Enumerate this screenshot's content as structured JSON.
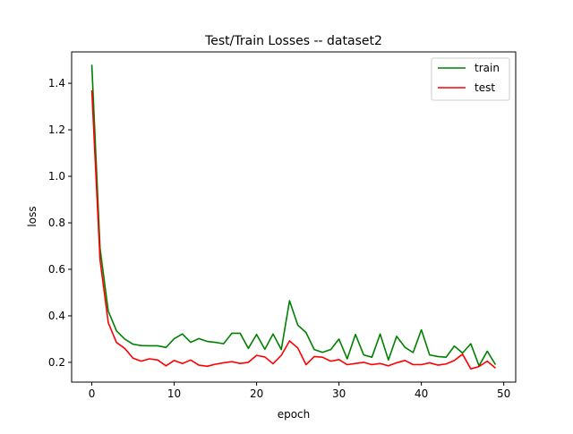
{
  "chart_data": {
    "type": "line",
    "title": "Test/Train Losses -- dataset2",
    "xlabel": "epoch",
    "ylabel": "loss",
    "xlim": [
      -2.45,
      51.45
    ],
    "ylim": [
      0.115,
      1.535
    ],
    "xticks": [
      0,
      10,
      20,
      30,
      40,
      50
    ],
    "yticks": [
      0.2,
      0.4,
      0.6,
      0.8,
      1.0,
      1.2,
      1.4
    ],
    "ytick_labels": [
      "0.2",
      "0.4",
      "0.6",
      "0.8",
      "1.0",
      "1.2",
      "1.4"
    ],
    "grid": false,
    "legend_position": "top-right",
    "x": [
      0,
      1,
      2,
      3,
      4,
      5,
      6,
      7,
      8,
      9,
      10,
      11,
      12,
      13,
      14,
      15,
      16,
      17,
      18,
      19,
      20,
      21,
      22,
      23,
      24,
      25,
      26,
      27,
      28,
      29,
      30,
      31,
      32,
      33,
      34,
      35,
      36,
      37,
      38,
      39,
      40,
      41,
      42,
      43,
      44,
      45,
      46,
      47,
      48,
      49
    ],
    "series": [
      {
        "name": "train",
        "color": "#008000",
        "values": [
          1.48,
          0.69,
          0.42,
          0.335,
          0.3,
          0.278,
          0.272,
          0.271,
          0.271,
          0.264,
          0.302,
          0.322,
          0.286,
          0.302,
          0.29,
          0.286,
          0.28,
          0.325,
          0.325,
          0.26,
          0.32,
          0.256,
          0.322,
          0.255,
          0.465,
          0.36,
          0.328,
          0.255,
          0.243,
          0.255,
          0.3,
          0.215,
          0.32,
          0.232,
          0.222,
          0.322,
          0.21,
          0.312,
          0.265,
          0.242,
          0.34,
          0.232,
          0.225,
          0.222,
          0.27,
          0.24,
          0.28,
          0.185,
          0.248,
          0.19
        ]
      },
      {
        "name": "test",
        "color": "#ff0000",
        "values": [
          1.37,
          0.64,
          0.37,
          0.285,
          0.26,
          0.218,
          0.205,
          0.215,
          0.21,
          0.185,
          0.208,
          0.195,
          0.21,
          0.188,
          0.183,
          0.192,
          0.198,
          0.203,
          0.195,
          0.2,
          0.23,
          0.223,
          0.194,
          0.23,
          0.292,
          0.262,
          0.19,
          0.225,
          0.222,
          0.205,
          0.212,
          0.19,
          0.195,
          0.2,
          0.19,
          0.195,
          0.185,
          0.198,
          0.208,
          0.19,
          0.19,
          0.198,
          0.188,
          0.193,
          0.208,
          0.235,
          0.172,
          0.182,
          0.205,
          0.175
        ]
      }
    ]
  }
}
